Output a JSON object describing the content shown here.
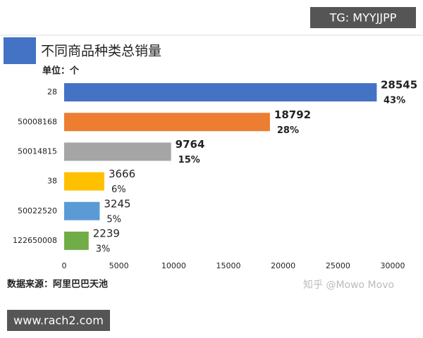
{
  "badge_top": "TG: MYYJJPP",
  "badge_bottom": "www.rach2.com",
  "watermark": "知乎 @Mowo Movo",
  "chart_data": {
    "type": "bar",
    "orientation": "horizontal",
    "title": "不同商品种类总销量",
    "subtitle": "单位：个",
    "source": "数据来源：阿里巴巴天池",
    "categories": [
      "28",
      "50008168",
      "50014815",
      "38",
      "50022520",
      "122650008"
    ],
    "values": [
      28545,
      18792,
      9764,
      3666,
      3245,
      2239
    ],
    "colors": [
      "#4472c4",
      "#ed7d31",
      "#a5a5a5",
      "#ffc000",
      "#5b9bd5",
      "#70ad47"
    ],
    "shares": {
      "values": [
        43,
        28,
        15,
        6,
        5,
        3
      ],
      "value_labels": [
        "43%",
        "28%",
        "15%",
        "6%",
        "5%",
        "3%"
      ]
    },
    "xlim": [
      0,
      30000
    ],
    "xticks": [
      0,
      5000,
      10000,
      15000,
      20000,
      25000,
      30000
    ],
    "grid": false
  }
}
